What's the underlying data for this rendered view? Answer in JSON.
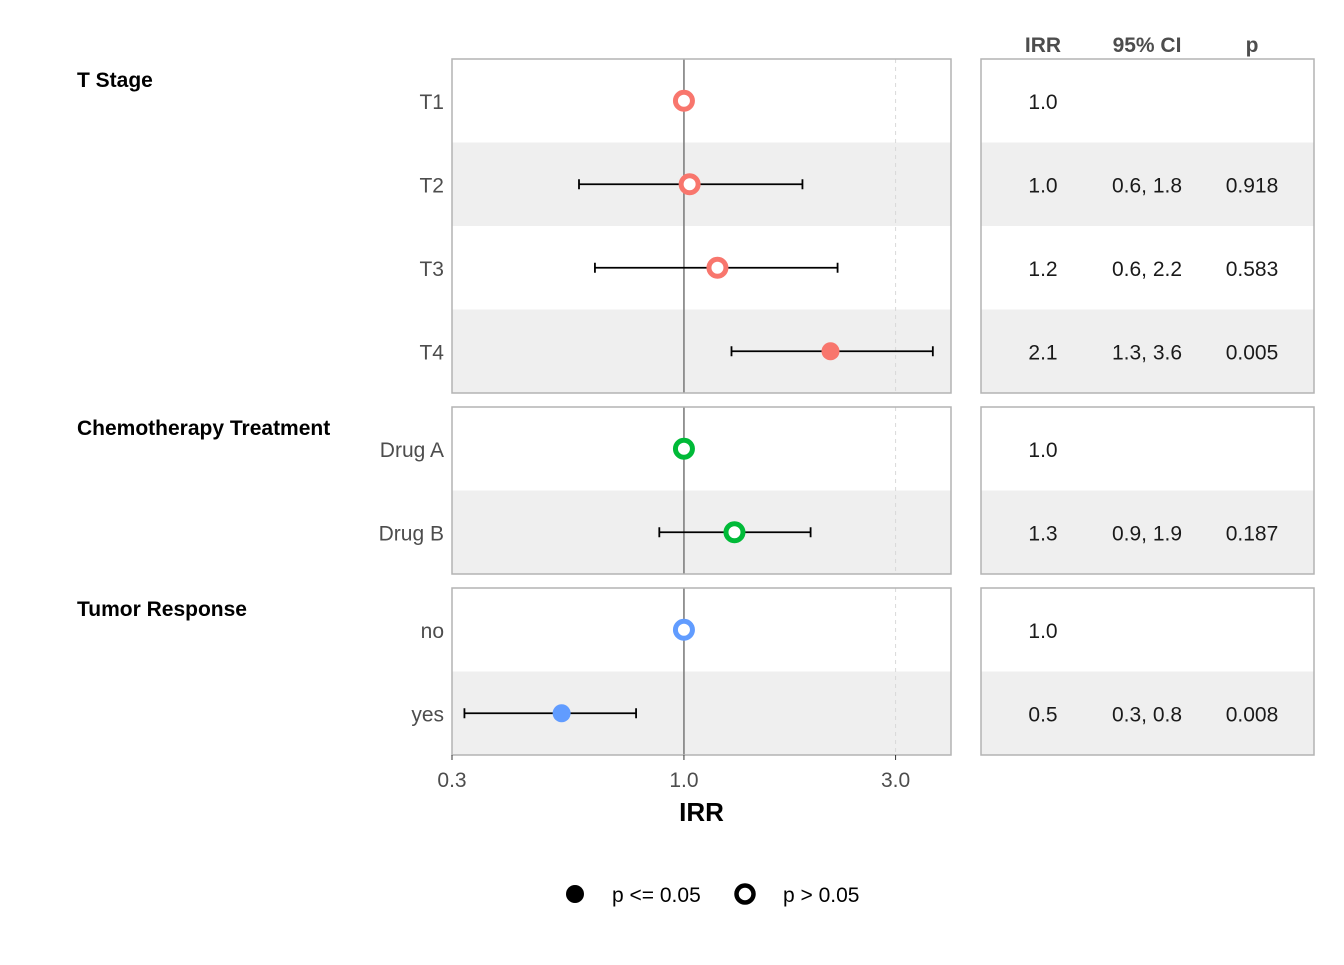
{
  "chart_data": {
    "type": "forest",
    "x_axis": {
      "label": "IRR",
      "scale": "log",
      "range": [
        0.3,
        4.0
      ],
      "ticks": [
        0.3,
        1.0,
        3.0
      ],
      "tick_labels": [
        "0.3",
        "1.0",
        "3.0"
      ]
    },
    "table_headers": {
      "irr": "IRR",
      "ci": "95% CI",
      "p": "p"
    },
    "groups": [
      {
        "title": "T Stage",
        "color": "#F8766D",
        "rows": [
          {
            "label": "T1",
            "irr": 1.0,
            "ci_low": null,
            "ci_high": null,
            "p": null,
            "irr_text": "1.0",
            "ci_text": "",
            "p_text": "",
            "significant": false
          },
          {
            "label": "T2",
            "irr": 1.03,
            "ci_low": 0.58,
            "ci_high": 1.85,
            "p": 0.918,
            "irr_text": "1.0",
            "ci_text": "0.6, 1.8",
            "p_text": "0.918",
            "significant": false
          },
          {
            "label": "T3",
            "irr": 1.19,
            "ci_low": 0.63,
            "ci_high": 2.22,
            "p": 0.583,
            "irr_text": "1.2",
            "ci_text": "0.6, 2.2",
            "p_text": "0.583",
            "significant": false
          },
          {
            "label": "T4",
            "irr": 2.14,
            "ci_low": 1.28,
            "ci_high": 3.64,
            "p": 0.005,
            "irr_text": "2.1",
            "ci_text": "1.3, 3.6",
            "p_text": "0.005",
            "significant": true
          }
        ]
      },
      {
        "title": "Chemotherapy Treatment",
        "color": "#00BA38",
        "rows": [
          {
            "label": "Drug A",
            "irr": 1.0,
            "ci_low": null,
            "ci_high": null,
            "p": null,
            "irr_text": "1.0",
            "ci_text": "",
            "p_text": "",
            "significant": false
          },
          {
            "label": "Drug B",
            "irr": 1.3,
            "ci_low": 0.88,
            "ci_high": 1.93,
            "p": 0.187,
            "irr_text": "1.3",
            "ci_text": "0.9, 1.9",
            "p_text": "0.187",
            "significant": false
          }
        ]
      },
      {
        "title": "Tumor Response",
        "color": "#619CFF",
        "rows": [
          {
            "label": "no",
            "irr": 1.0,
            "ci_low": null,
            "ci_high": null,
            "p": null,
            "irr_text": "1.0",
            "ci_text": "",
            "p_text": "",
            "significant": false
          },
          {
            "label": "yes",
            "irr": 0.53,
            "ci_low": 0.32,
            "ci_high": 0.78,
            "p": 0.008,
            "irr_text": "0.5",
            "ci_text": "0.3, 0.8",
            "p_text": "0.008",
            "significant": true
          }
        ]
      }
    ],
    "legend": {
      "position": "bottom",
      "entries": [
        {
          "label": "p <= 0.05",
          "marker": "filled-circle"
        },
        {
          "label": "p > 0.05",
          "marker": "hollow-circle"
        }
      ]
    },
    "reference_line": 1.0,
    "grid": "vertical-dashed-minor"
  }
}
